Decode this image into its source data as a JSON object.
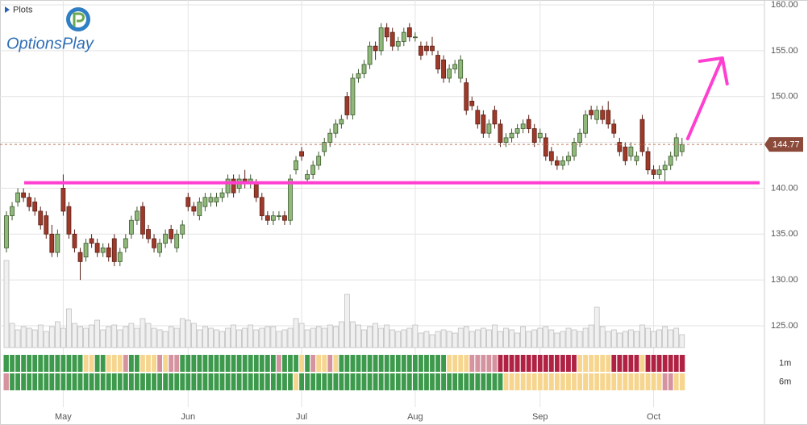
{
  "header": {
    "plots_label": "Plots",
    "logo_text": "OptionsPlay"
  },
  "chart_data": {
    "type": "candlestick",
    "ylim": [
      125,
      160
    ],
    "yticks": [
      {
        "value": 160,
        "label": "160.00"
      },
      {
        "value": 155,
        "label": "155.00"
      },
      {
        "value": 150,
        "label": "150.00"
      },
      {
        "value": 145,
        "label": "145.00"
      },
      {
        "value": 140,
        "label": "140.00"
      },
      {
        "value": 135,
        "label": "135.00"
      },
      {
        "value": 130,
        "label": "130.00"
      },
      {
        "value": 125,
        "label": "125.00"
      }
    ],
    "xticks": [
      {
        "value": 10,
        "label": "May"
      },
      {
        "value": 32,
        "label": "Jun"
      },
      {
        "value": 52,
        "label": "Jul"
      },
      {
        "value": 72,
        "label": "Aug"
      },
      {
        "value": 94,
        "label": "Sep"
      },
      {
        "value": 114,
        "label": "Oct"
      }
    ],
    "up_color": "#8fb87a",
    "down_color": "#9e3a2a",
    "ohlc": [
      [
        133.5,
        137.5,
        133,
        137
      ],
      [
        137,
        138.5,
        136.5,
        138
      ],
      [
        138.5,
        140,
        138,
        139.5
      ],
      [
        139.5,
        140,
        138.5,
        139
      ],
      [
        139,
        139.5,
        137.5,
        138
      ],
      [
        138.5,
        139,
        137,
        137.5
      ],
      [
        137.5,
        138,
        135.5,
        136
      ],
      [
        137,
        137.5,
        134.5,
        135
      ],
      [
        135,
        136,
        132.5,
        133
      ],
      [
        133,
        135.5,
        132.5,
        135
      ],
      [
        140,
        141.5,
        137,
        137.5
      ],
      [
        138,
        138.5,
        134.5,
        135
      ],
      [
        135,
        135.5,
        133,
        133.5
      ],
      [
        133,
        133.5,
        130,
        132
      ],
      [
        132.5,
        134.5,
        132,
        134
      ],
      [
        134.5,
        135,
        133.5,
        134
      ],
      [
        134,
        134.5,
        132.5,
        133
      ],
      [
        133,
        134,
        132.5,
        133.5
      ],
      [
        133.5,
        134,
        132,
        132.5
      ],
      [
        134.5,
        135,
        131.5,
        132
      ],
      [
        132,
        133.5,
        131.5,
        133
      ],
      [
        133.5,
        135,
        133,
        134.5
      ],
      [
        135,
        137,
        134.5,
        136.5
      ],
      [
        136.5,
        138,
        136,
        137.5
      ],
      [
        138,
        138.5,
        134.5,
        135
      ],
      [
        135.5,
        136,
        134,
        134.5
      ],
      [
        134.5,
        135,
        133,
        133.5
      ],
      [
        133,
        134.5,
        132.5,
        134
      ],
      [
        134,
        135.5,
        133.5,
        135
      ],
      [
        135.5,
        136,
        134,
        134.5
      ],
      [
        133.5,
        135.5,
        133,
        135
      ],
      [
        135,
        136.5,
        134.5,
        136
      ],
      [
        139,
        139.5,
        137.5,
        138
      ],
      [
        138,
        138.5,
        137,
        137.5
      ],
      [
        137,
        139,
        136.5,
        138.5
      ],
      [
        138,
        139.5,
        137.5,
        139
      ],
      [
        138.5,
        139.5,
        138,
        139
      ],
      [
        138.5,
        139.5,
        138,
        139
      ],
      [
        139,
        140,
        138.5,
        139.5
      ],
      [
        139.5,
        141.5,
        139,
        141
      ],
      [
        141,
        141.5,
        139,
        139.5
      ],
      [
        140,
        141.5,
        139.5,
        141
      ],
      [
        141,
        142,
        140,
        140.5
      ],
      [
        140.5,
        141.5,
        140,
        141
      ],
      [
        140.5,
        141,
        138.5,
        139
      ],
      [
        139,
        139.5,
        136.5,
        137
      ],
      [
        137,
        137.5,
        136,
        136.5
      ],
      [
        136.5,
        137.5,
        136,
        137
      ],
      [
        137,
        137.5,
        136.5,
        137
      ],
      [
        137,
        137.5,
        136,
        136.5
      ],
      [
        136.5,
        141.5,
        136,
        141
      ],
      [
        142,
        143.5,
        141.5,
        143
      ],
      [
        144,
        144.5,
        143,
        143.5
      ],
      [
        141,
        142,
        140.5,
        141.5
      ],
      [
        141.5,
        143,
        141,
        142.5
      ],
      [
        142.5,
        144,
        142,
        143.5
      ],
      [
        144,
        145.5,
        143.5,
        145
      ],
      [
        145,
        146.5,
        144.5,
        146
      ],
      [
        146,
        147.5,
        145.5,
        147
      ],
      [
        147,
        148,
        146.5,
        147.5
      ],
      [
        150,
        150.5,
        147.5,
        148
      ],
      [
        148,
        152.5,
        147.5,
        152
      ],
      [
        152,
        153,
        151.5,
        152.5
      ],
      [
        152.5,
        154,
        152,
        153.5
      ],
      [
        153.5,
        156,
        153,
        155.5
      ],
      [
        155.5,
        156,
        154,
        155
      ],
      [
        155,
        158,
        154.5,
        157.5
      ],
      [
        157.5,
        158,
        156,
        156.5
      ],
      [
        157,
        157.5,
        155,
        155.5
      ],
      [
        155.5,
        156.5,
        155,
        156
      ],
      [
        156,
        157.5,
        155.5,
        157
      ],
      [
        157.5,
        158,
        156,
        156.5
      ],
      [
        156.5,
        157,
        156,
        156.5
      ],
      [
        155.5,
        156,
        154,
        154.5
      ],
      [
        155.5,
        156,
        154.5,
        155
      ],
      [
        155.5,
        156.5,
        154.5,
        155
      ],
      [
        154.5,
        155,
        152.5,
        153
      ],
      [
        154,
        154.5,
        151.5,
        152
      ],
      [
        152,
        153.5,
        151.5,
        153
      ],
      [
        153,
        154,
        152.5,
        153.5
      ],
      [
        152,
        154.5,
        151.5,
        154
      ],
      [
        151.5,
        152,
        148,
        148.5
      ],
      [
        149.5,
        150,
        148.5,
        149
      ],
      [
        148.5,
        149,
        146.5,
        147
      ],
      [
        148,
        148.5,
        145.5,
        146
      ],
      [
        146,
        147.5,
        145.5,
        147
      ],
      [
        148.5,
        149,
        146.5,
        147
      ],
      [
        147,
        147.5,
        144.5,
        145
      ],
      [
        145,
        146,
        144.5,
        145.5
      ],
      [
        145.5,
        146.5,
        145,
        146
      ],
      [
        146,
        147,
        145.5,
        146.5
      ],
      [
        146.5,
        147.5,
        146,
        147
      ],
      [
        147.5,
        148,
        146,
        146.5
      ],
      [
        146.5,
        147,
        144.5,
        145
      ],
      [
        145.5,
        146.5,
        145,
        146
      ],
      [
        145.5,
        146,
        143,
        143.5
      ],
      [
        144,
        144.5,
        142.5,
        143
      ],
      [
        143,
        143.5,
        142,
        142.5
      ],
      [
        142.5,
        143.5,
        142,
        143
      ],
      [
        143,
        144,
        142.5,
        143.5
      ],
      [
        143.5,
        145.5,
        143,
        145
      ],
      [
        145,
        146.5,
        144.5,
        146
      ],
      [
        146,
        148.5,
        145.5,
        148
      ],
      [
        148.5,
        149,
        147.5,
        148
      ],
      [
        147.5,
        149,
        147,
        148.5
      ],
      [
        148.5,
        149,
        147,
        147.5
      ],
      [
        148.5,
        149.5,
        146.5,
        147
      ],
      [
        147,
        147.5,
        145.5,
        146
      ],
      [
        145,
        145.5,
        143.5,
        144
      ],
      [
        144.5,
        145,
        142.5,
        143
      ],
      [
        143.5,
        145,
        143,
        144.5
      ],
      [
        143,
        144,
        142.5,
        143.5
      ],
      [
        147.5,
        148,
        143.5,
        144
      ],
      [
        144,
        144.5,
        141.5,
        142
      ],
      [
        142,
        142.5,
        141,
        141.5
      ],
      [
        141.5,
        142.5,
        141,
        142
      ],
      [
        142,
        143,
        140.5,
        142.5
      ],
      [
        142.5,
        144,
        142,
        143.5
      ],
      [
        143.5,
        146,
        143,
        145.5
      ],
      [
        144,
        145.5,
        143.5,
        144.77
      ]
    ],
    "volume": [
      108,
      30,
      22,
      26,
      24,
      22,
      28,
      20,
      26,
      32,
      24,
      48,
      30,
      26,
      24,
      28,
      34,
      22,
      26,
      28,
      22,
      26,
      30,
      24,
      36,
      30,
      24,
      22,
      20,
      26,
      24,
      36,
      34,
      30,
      22,
      26,
      24,
      22,
      20,
      24,
      28,
      22,
      24,
      28,
      22,
      24,
      26,
      26,
      20,
      22,
      24,
      36,
      30,
      22,
      24,
      26,
      24,
      28,
      26,
      32,
      66,
      32,
      28,
      22,
      26,
      30,
      24,
      28,
      22,
      20,
      22,
      24,
      28,
      18,
      20,
      16,
      20,
      22,
      20,
      18,
      24,
      26,
      20,
      22,
      24,
      22,
      28,
      20,
      24,
      22,
      18,
      26,
      20,
      22,
      24,
      26,
      22,
      18,
      20,
      24,
      22,
      20,
      24,
      28,
      50,
      26,
      20,
      22,
      18,
      20,
      22,
      20,
      28,
      24,
      20,
      22,
      26,
      22,
      24,
      16
    ],
    "last_price": {
      "value": 144.77,
      "label": "144.77",
      "color": "#8b4a3a"
    },
    "support_level": {
      "value": 140.6,
      "color": "#ff3fd0"
    },
    "arrow": {
      "from": [
        120,
        145.4
      ],
      "to": [
        126.1,
        154.2
      ],
      "color": "#ff3fd0"
    },
    "heatmap": [
      {
        "label": "1m",
        "runs": [
          {
            "count": 14,
            "color": "#3d9a4c"
          },
          {
            "count": 2,
            "color": "#f6d58f"
          },
          {
            "count": 2,
            "color": "#3d9a4c"
          },
          {
            "count": 3,
            "color": "#f6d58f"
          },
          {
            "count": 1,
            "color": "#d4939f"
          },
          {
            "count": 2,
            "color": "#3d9a4c"
          },
          {
            "count": 3,
            "color": "#f6d58f"
          },
          {
            "count": 1,
            "color": "#d4939f"
          },
          {
            "count": 1,
            "color": "#f6d58f"
          },
          {
            "count": 2,
            "color": "#d4939f"
          },
          {
            "count": 17,
            "color": "#3d9a4c"
          },
          {
            "count": 1,
            "color": "#d4939f"
          },
          {
            "count": 3,
            "color": "#3d9a4c"
          },
          {
            "count": 1,
            "color": "#f6d58f"
          },
          {
            "count": 1,
            "color": "#3d9a4c"
          },
          {
            "count": 1,
            "color": "#d4939f"
          },
          {
            "count": 2,
            "color": "#f6d58f"
          },
          {
            "count": 1,
            "color": "#d4939f"
          },
          {
            "count": 1,
            "color": "#f6d58f"
          },
          {
            "count": 19,
            "color": "#3d9a4c"
          },
          {
            "count": 4,
            "color": "#f6d58f"
          },
          {
            "count": 5,
            "color": "#d4939f"
          },
          {
            "count": 14,
            "color": "#b02243"
          },
          {
            "count": 6,
            "color": "#f6d58f"
          },
          {
            "count": 5,
            "color": "#b02243"
          },
          {
            "count": 1,
            "color": "#f6d58f"
          },
          {
            "count": 7,
            "color": "#b02243"
          }
        ]
      },
      {
        "label": "6m",
        "runs": [
          {
            "count": 1,
            "color": "#d4939f"
          },
          {
            "count": 50,
            "color": "#3d9a4c"
          },
          {
            "count": 1,
            "color": "#f6d58f"
          },
          {
            "count": 36,
            "color": "#3d9a4c"
          },
          {
            "count": 28,
            "color": "#f6d58f"
          },
          {
            "count": 2,
            "color": "#d4939f"
          },
          {
            "count": 2,
            "color": "#f6d58f"
          }
        ]
      }
    ]
  }
}
